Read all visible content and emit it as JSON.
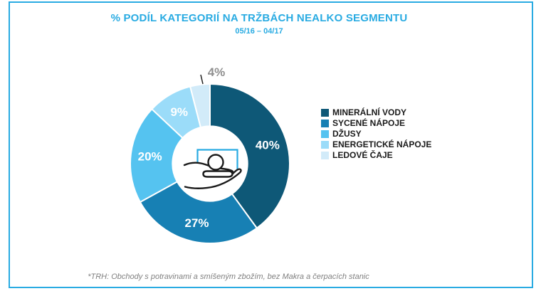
{
  "chart_data": {
    "type": "pie",
    "subtype": "donut",
    "title": "% PODÍL KATEGORIÍ NA TRŽBÁCH NEALKO SEGMENTU",
    "subtitle": "05/16 – 04/17",
    "categories": [
      "MINERÁLNÍ VODY",
      "SYCENÉ NÁPOJE",
      "DŽUSY",
      "ENERGETICKÉ NÁPOJE",
      "LEDOVÉ ČAJE"
    ],
    "values": [
      40,
      27,
      20,
      9,
      4
    ],
    "labels": [
      "40%",
      "27%",
      "20%",
      "9%",
      "4%"
    ],
    "colors": [
      "#0E5877",
      "#1780B4",
      "#55C3F0",
      "#9BDCF9",
      "#D2EBF9"
    ],
    "start_angle_deg": 0,
    "direction": "clockwise",
    "donut_hole_ratio": 0.47,
    "legend_position": "right",
    "inside_label_color": "#FFFFFF",
    "outside_label_color": "#8F8F8F",
    "outside_label_indices": [
      4
    ],
    "center_icon": "hand-presenting-product"
  },
  "accent_color": "#29ABE2",
  "footnote": {
    "text": "*TRH: Obchody s potravinami a smíšeným zbožím, bez Makra a čerpacích stanic"
  }
}
